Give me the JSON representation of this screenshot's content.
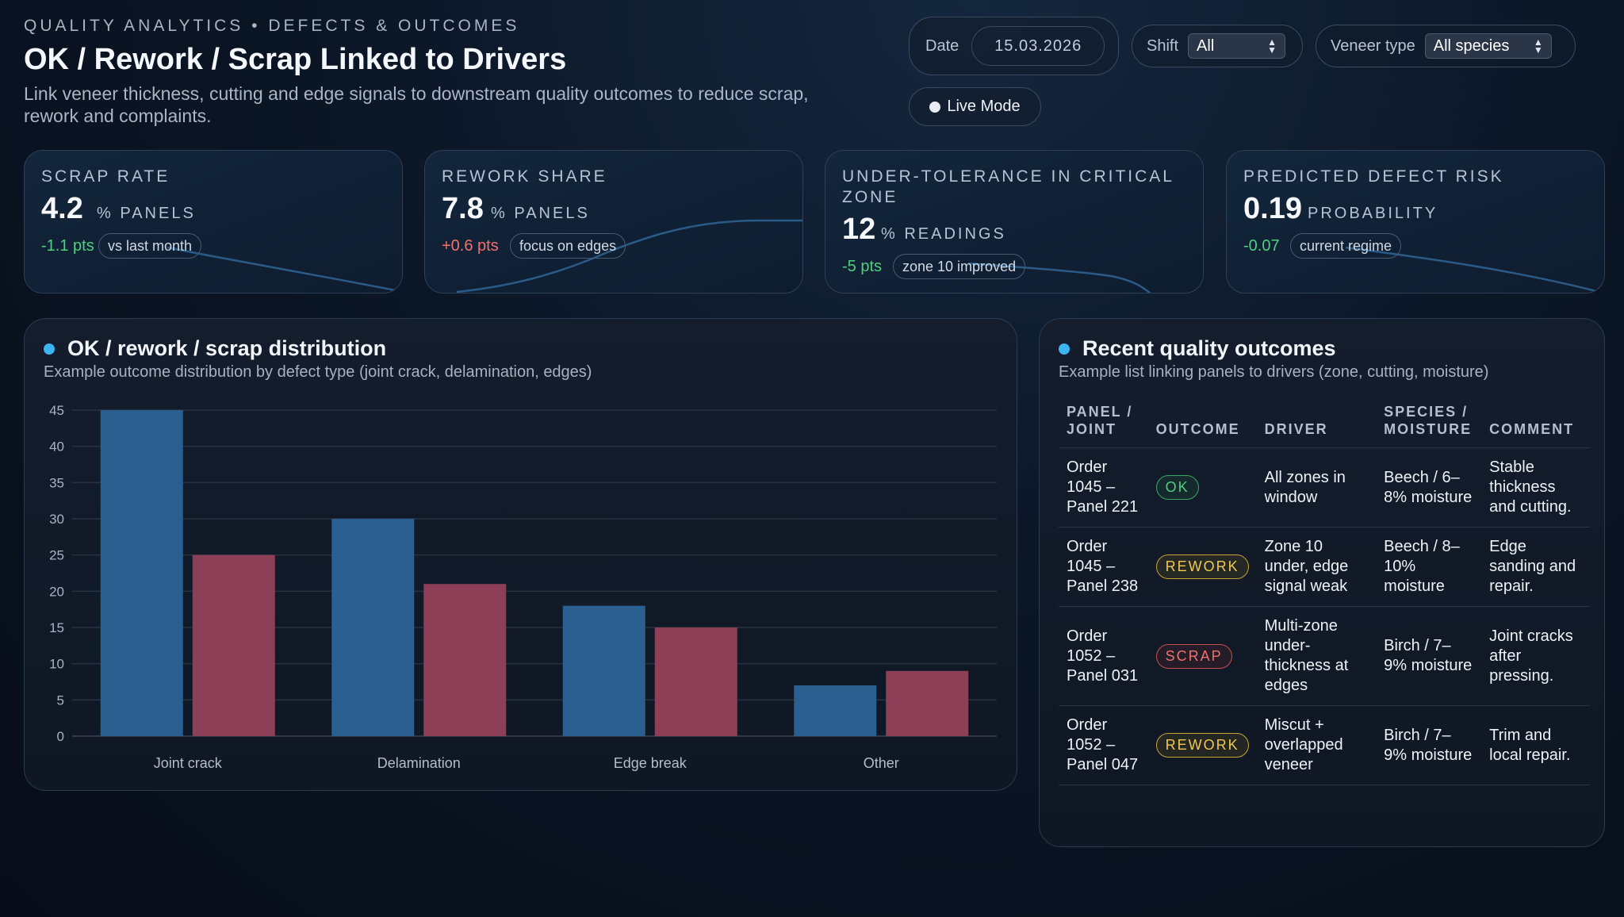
{
  "header": {
    "eyebrow": "QUALITY ANALYTICS • DEFECTS & OUTCOMES",
    "title": "OK / Rework / Scrap Linked to Drivers",
    "subtitle": "Link veneer thickness, cutting and edge signals to downstream quality outcomes to reduce scrap, rework and complaints."
  },
  "controls": {
    "date_label": "Date",
    "date_value": "15.03.2026",
    "shift_label": "Shift",
    "shift_value": "All",
    "veneer_label": "Veneer type",
    "veneer_value": "All species",
    "live_label": "Live Mode"
  },
  "kpis": [
    {
      "label": "SCRAP RATE",
      "value": "4.2",
      "unit": "% PANELS",
      "delta": "-1.1 pts",
      "badge": "vs last month"
    },
    {
      "label": "REWORK SHARE",
      "value": "7.8",
      "unit": "% PANELS",
      "delta": "+0.6 pts",
      "badge": "focus on edges"
    },
    {
      "label": "UNDER-TOLERANCE IN CRITICAL ZONE",
      "value": "12",
      "unit": "% READINGS",
      "delta": "-5 pts",
      "badge": "zone 10 improved"
    },
    {
      "label": "PREDICTED DEFECT RISK",
      "value": "0.19",
      "unit": "PROBABILITY",
      "delta": "-0.07",
      "badge": "current regime"
    }
  ],
  "chart_panel": {
    "title": "OK / rework / scrap distribution",
    "subtitle": "Example outcome distribution by defect type (joint crack, delamination, edges)"
  },
  "chart_data": {
    "type": "bar",
    "categories": [
      "Joint crack",
      "Delamination",
      "Edge break",
      "Other"
    ],
    "series": [
      {
        "values": [
          45,
          30,
          18,
          7
        ],
        "color": "#2b5f8f"
      },
      {
        "values": [
          25,
          21,
          15,
          9
        ],
        "color": "#8e3f58"
      }
    ],
    "ylim": [
      0,
      45
    ],
    "yticks": [
      0,
      5,
      10,
      15,
      20,
      25,
      30,
      35,
      40,
      45
    ],
    "grid": true
  },
  "table_panel": {
    "title": "Recent quality outcomes",
    "subtitle": "Example list linking panels to drivers (zone, cutting, moisture)",
    "headers": {
      "panel": "PANEL / JOINT",
      "outcome": "OUTCOME",
      "driver": "DRIVER",
      "species": "SPECIES / MOISTURE",
      "comment": "COMMENT"
    },
    "rows": [
      {
        "panel": "Order 1045 – Panel 221",
        "outcome": "OK",
        "outcome_kind": "ok",
        "driver": "All zones in window",
        "species": "Beech / 6–8% moisture",
        "comment": "Stable thickness and cutting."
      },
      {
        "panel": "Order 1045 – Panel 238",
        "outcome": "REWORK",
        "outcome_kind": "rework",
        "driver": "Zone 10 under, edge signal weak",
        "species": "Beech / 8–10% moisture",
        "comment": "Edge sanding and repair."
      },
      {
        "panel": "Order 1052 – Panel 031",
        "outcome": "SCRAP",
        "outcome_kind": "scrap",
        "driver": "Multi-zone under-thickness at edges",
        "species": "Birch / 7–9% moisture",
        "comment": "Joint cracks after pressing."
      },
      {
        "panel": "Order 1052 – Panel 047",
        "outcome": "REWORK",
        "outcome_kind": "rework",
        "driver": "Miscut + overlapped veneer",
        "species": "Birch / 7–9% moisture",
        "comment": "Trim and local repair."
      }
    ]
  },
  "colors": {
    "accent": "#3ab4f2",
    "positive": "#4fd07e",
    "negative": "#f0716f",
    "warning": "#f2c94c"
  }
}
